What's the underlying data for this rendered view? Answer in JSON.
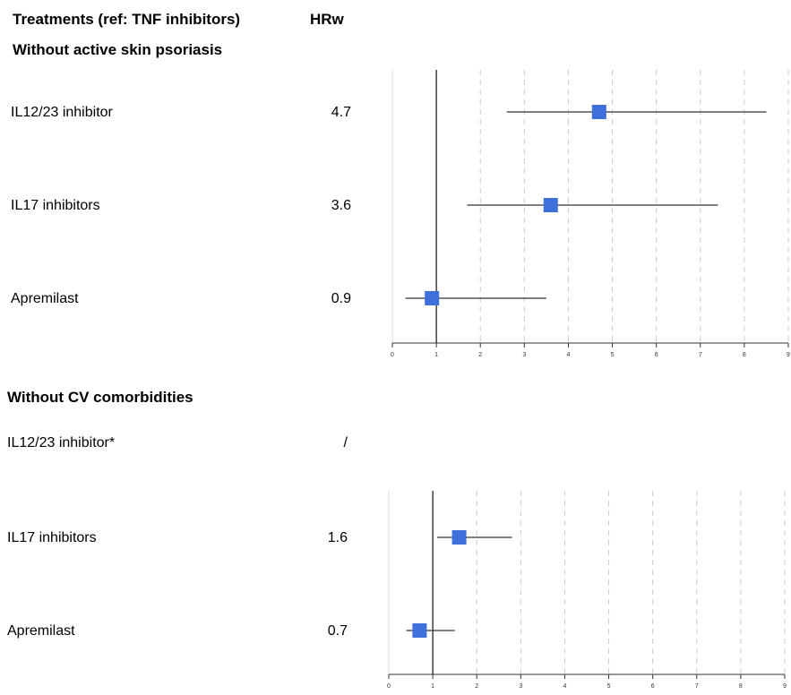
{
  "header": {
    "treatments_title": "Treatments (ref: TNF inhibitors)",
    "hr_title": "HRw"
  },
  "chart_data": [
    {
      "type": "forest",
      "section_title": "Without active skin psoriasis",
      "xlim": [
        0,
        9
      ],
      "ticks": [
        "0",
        "1",
        "2",
        "3",
        "4",
        "5",
        "6",
        "7",
        "8",
        "9"
      ],
      "reference_line": 1,
      "rows": [
        {
          "label": "IL12/23 inhibitor",
          "hr_text": "4.7",
          "hr": 4.7,
          "lo": 2.6,
          "hi": 8.5
        },
        {
          "label": "IL17 inhibitors",
          "hr_text": "3.6",
          "hr": 3.6,
          "lo": 1.7,
          "hi": 7.4
        },
        {
          "label": "Apremilast",
          "hr_text": "0.9",
          "hr": 0.9,
          "lo": 0.3,
          "hi": 3.5
        }
      ]
    },
    {
      "type": "forest",
      "section_title": "Without CV comorbidities",
      "xlim": [
        0,
        9
      ],
      "ticks": [
        "0",
        "1",
        "2",
        "3",
        "4",
        "5",
        "6",
        "7",
        "8",
        "9"
      ],
      "reference_line": 1,
      "rows": [
        {
          "label": "IL12/23 inhibitor*",
          "hr_text": "/",
          "hr": null,
          "lo": null,
          "hi": null
        },
        {
          "label": "IL17 inhibitors",
          "hr_text": "1.6",
          "hr": 1.6,
          "lo": 1.1,
          "hi": 2.8
        },
        {
          "label": "Apremilast",
          "hr_text": "0.7",
          "hr": 0.7,
          "lo": 0.4,
          "hi": 1.5
        }
      ]
    }
  ],
  "colors": {
    "marker": "#3f6fd8",
    "grid": "#cccccc",
    "line": "#333333"
  }
}
